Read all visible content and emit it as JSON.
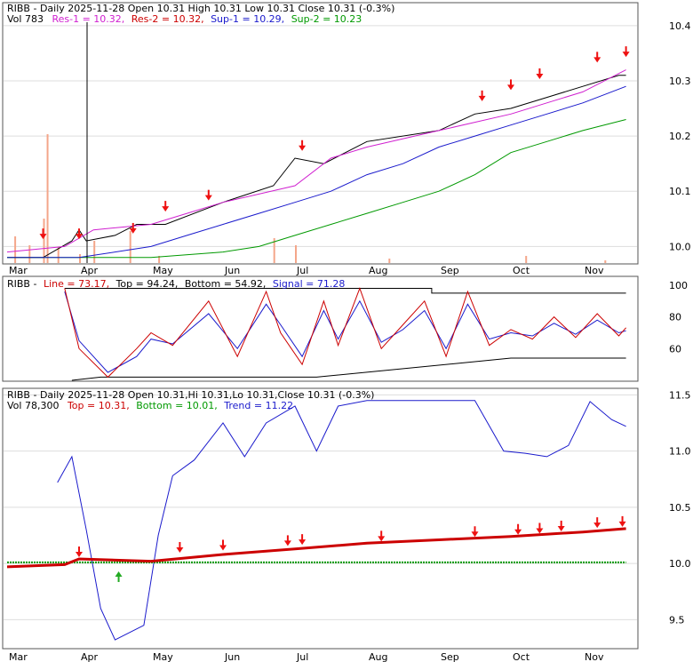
{
  "colors": {
    "res1": "#d020d0",
    "res2": "#cc0000",
    "sup1": "#1a1acc",
    "sup2": "#009900",
    "price": "#000000",
    "volume": "#f4a68a",
    "rsi_line": "#cc0000",
    "rsi_signal": "#1a1acc",
    "top_dots": "#cc0000",
    "bottom_dots": "#009900",
    "trend": "#1a1acc",
    "arrow_down": "#ee1111",
    "arrow_up": "#22aa22",
    "grid": "#dddddd"
  },
  "months": [
    "Mar",
    "Apr",
    "May",
    "Jun",
    "Jul",
    "Aug",
    "Sep",
    "Oct",
    "Nov"
  ],
  "panel1": {
    "header": {
      "line1_prefix": "RIBB - Daily 2025-11-28 Open 10.31  High 10.31  Low 10.31  Close 10.31 (-0.3%)",
      "vol": "Vol 783",
      "res1": "Res-1 = 10.32,",
      "res2": "Res-2 = 10.32,",
      "sup1": "Sup-1 = 10.29,",
      "sup2": "Sup-2 = 10.23"
    },
    "yticks": [
      "10.4",
      "10.3",
      "10.2",
      "10.1",
      "10.0"
    ]
  },
  "panel2": {
    "header": {
      "name": "RIBB -",
      "line": "Line = 73.17,",
      "top": "Top = 94.24,",
      "bottom": "Bottom = 54.92,",
      "signal": "Signal = 71.28"
    },
    "yticks": [
      "100",
      "80",
      "60"
    ]
  },
  "panel3": {
    "header": {
      "line1": "RIBB - Daily 2025-11-28 Open 10.31,Hi 10.31,Lo 10.31,Close 10.31 (-0.3%)",
      "vol": "Vol 78,300",
      "top": "Top = 10.31,",
      "bottom": "Bottom = 10.01,",
      "trend": "Trend = 11.22"
    },
    "yticks": [
      "11.5",
      "11.0",
      "10.5",
      "10.0",
      "9.5"
    ]
  },
  "chart_data": [
    {
      "type": "line",
      "panel": "price with support/resistance",
      "ylim": [
        9.97,
        10.44
      ],
      "x_months": [
        "Mar",
        "Apr",
        "May",
        "Jun",
        "Jul",
        "Aug",
        "Sep",
        "Oct",
        "Nov"
      ],
      "series": [
        {
          "name": "Res-1",
          "x": [
            0,
            0.8,
            1.2,
            2.0,
            2.5,
            3.0,
            4.0,
            4.5,
            5.0,
            6.0,
            7.0,
            7.5,
            8.0,
            8.6
          ],
          "values": [
            9.99,
            10.0,
            10.03,
            10.04,
            10.06,
            10.08,
            10.11,
            10.16,
            10.18,
            10.21,
            10.24,
            10.26,
            10.28,
            10.32
          ]
        },
        {
          "name": "Sup-1",
          "x": [
            0,
            1.0,
            2.0,
            2.5,
            3.0,
            3.5,
            4.0,
            4.5,
            5.0,
            5.5,
            6.0,
            6.5,
            7.0,
            7.5,
            8.0,
            8.6
          ],
          "values": [
            9.98,
            9.98,
            10.0,
            10.02,
            10.04,
            10.06,
            10.08,
            10.1,
            10.13,
            10.15,
            10.18,
            10.2,
            10.22,
            10.24,
            10.26,
            10.29
          ]
        },
        {
          "name": "Sup-2",
          "x": [
            0,
            2.0,
            3.0,
            3.5,
            4.0,
            4.5,
            5.0,
            5.5,
            6.0,
            6.5,
            7.0,
            7.5,
            8.0,
            8.6
          ],
          "values": [
            9.98,
            9.98,
            9.99,
            10.0,
            10.02,
            10.04,
            10.06,
            10.08,
            10.1,
            10.13,
            10.17,
            10.19,
            10.21,
            10.23
          ]
        },
        {
          "name": "Close",
          "x": [
            0,
            0.5,
            0.9,
            1.0,
            1.1,
            1.5,
            1.8,
            2.2,
            3.0,
            3.7,
            4.0,
            4.4,
            5.0,
            6.0,
            6.5,
            7.0,
            7.5,
            8.0,
            8.5,
            8.6
          ],
          "values": [
            9.98,
            9.98,
            10.01,
            10.03,
            10.01,
            10.02,
            10.04,
            10.04,
            10.08,
            10.11,
            10.16,
            10.15,
            10.19,
            10.21,
            10.24,
            10.25,
            10.27,
            10.29,
            10.31,
            10.31
          ]
        }
      ]
    },
    {
      "type": "line",
      "panel": "oscillator",
      "ylim": [
        40,
        105
      ],
      "series": [
        {
          "name": "Line",
          "x": [
            0.8,
            1.0,
            1.4,
            1.8,
            2.0,
            2.3,
            2.8,
            3.2,
            3.6,
            3.8,
            4.1,
            4.4,
            4.6,
            4.9,
            5.2,
            5.5,
            5.8,
            6.1,
            6.4,
            6.7,
            7.0,
            7.3,
            7.6,
            7.9,
            8.2,
            8.5,
            8.6
          ],
          "values": [
            98,
            60,
            42,
            60,
            70,
            62,
            90,
            55,
            96,
            70,
            50,
            90,
            62,
            98,
            60,
            75,
            90,
            55,
            96,
            62,
            72,
            66,
            80,
            67,
            82,
            68,
            73.17
          ]
        },
        {
          "name": "Signal",
          "x": [
            0.8,
            1.0,
            1.4,
            1.8,
            2.0,
            2.3,
            2.8,
            3.2,
            3.6,
            3.8,
            4.1,
            4.4,
            4.6,
            4.9,
            5.2,
            5.5,
            5.8,
            6.1,
            6.4,
            6.7,
            7.0,
            7.3,
            7.6,
            7.9,
            8.2,
            8.5,
            8.6
          ],
          "values": [
            96,
            65,
            45,
            55,
            66,
            63,
            82,
            60,
            88,
            75,
            55,
            84,
            66,
            90,
            64,
            72,
            84,
            60,
            88,
            66,
            70,
            68,
            76,
            69,
            78,
            70,
            71.28
          ]
        }
      ]
    },
    {
      "type": "line",
      "panel": "price with top/bottom/trend",
      "ylim": [
        9.25,
        11.55
      ],
      "series": [
        {
          "name": "Top",
          "x": [
            0,
            0.8,
            1.0,
            2.0,
            3.0,
            4.0,
            5.0,
            6.0,
            7.0,
            8.0,
            8.6
          ],
          "values": [
            9.97,
            9.99,
            10.04,
            10.02,
            10.08,
            10.13,
            10.18,
            10.21,
            10.24,
            10.28,
            10.31
          ]
        },
        {
          "name": "Bottom",
          "x": [
            0,
            8.6
          ],
          "values": [
            10.01,
            10.01
          ]
        },
        {
          "name": "Trend",
          "x": [
            0.7,
            0.9,
            1.1,
            1.3,
            1.5,
            1.9,
            2.1,
            2.3,
            2.6,
            3.0,
            3.3,
            3.6,
            4.0,
            4.3,
            4.6,
            5.0,
            5.5,
            6.0,
            6.5,
            6.9,
            7.2,
            7.5,
            7.8,
            8.1,
            8.4,
            8.6
          ],
          "values": [
            10.72,
            10.95,
            10.3,
            9.6,
            9.32,
            9.45,
            10.25,
            10.78,
            10.92,
            11.25,
            10.95,
            11.25,
            11.4,
            11.0,
            11.4,
            11.45,
            11.45,
            11.45,
            11.45,
            11.0,
            10.98,
            10.95,
            11.05,
            11.44,
            11.28,
            11.22
          ]
        }
      ]
    }
  ]
}
